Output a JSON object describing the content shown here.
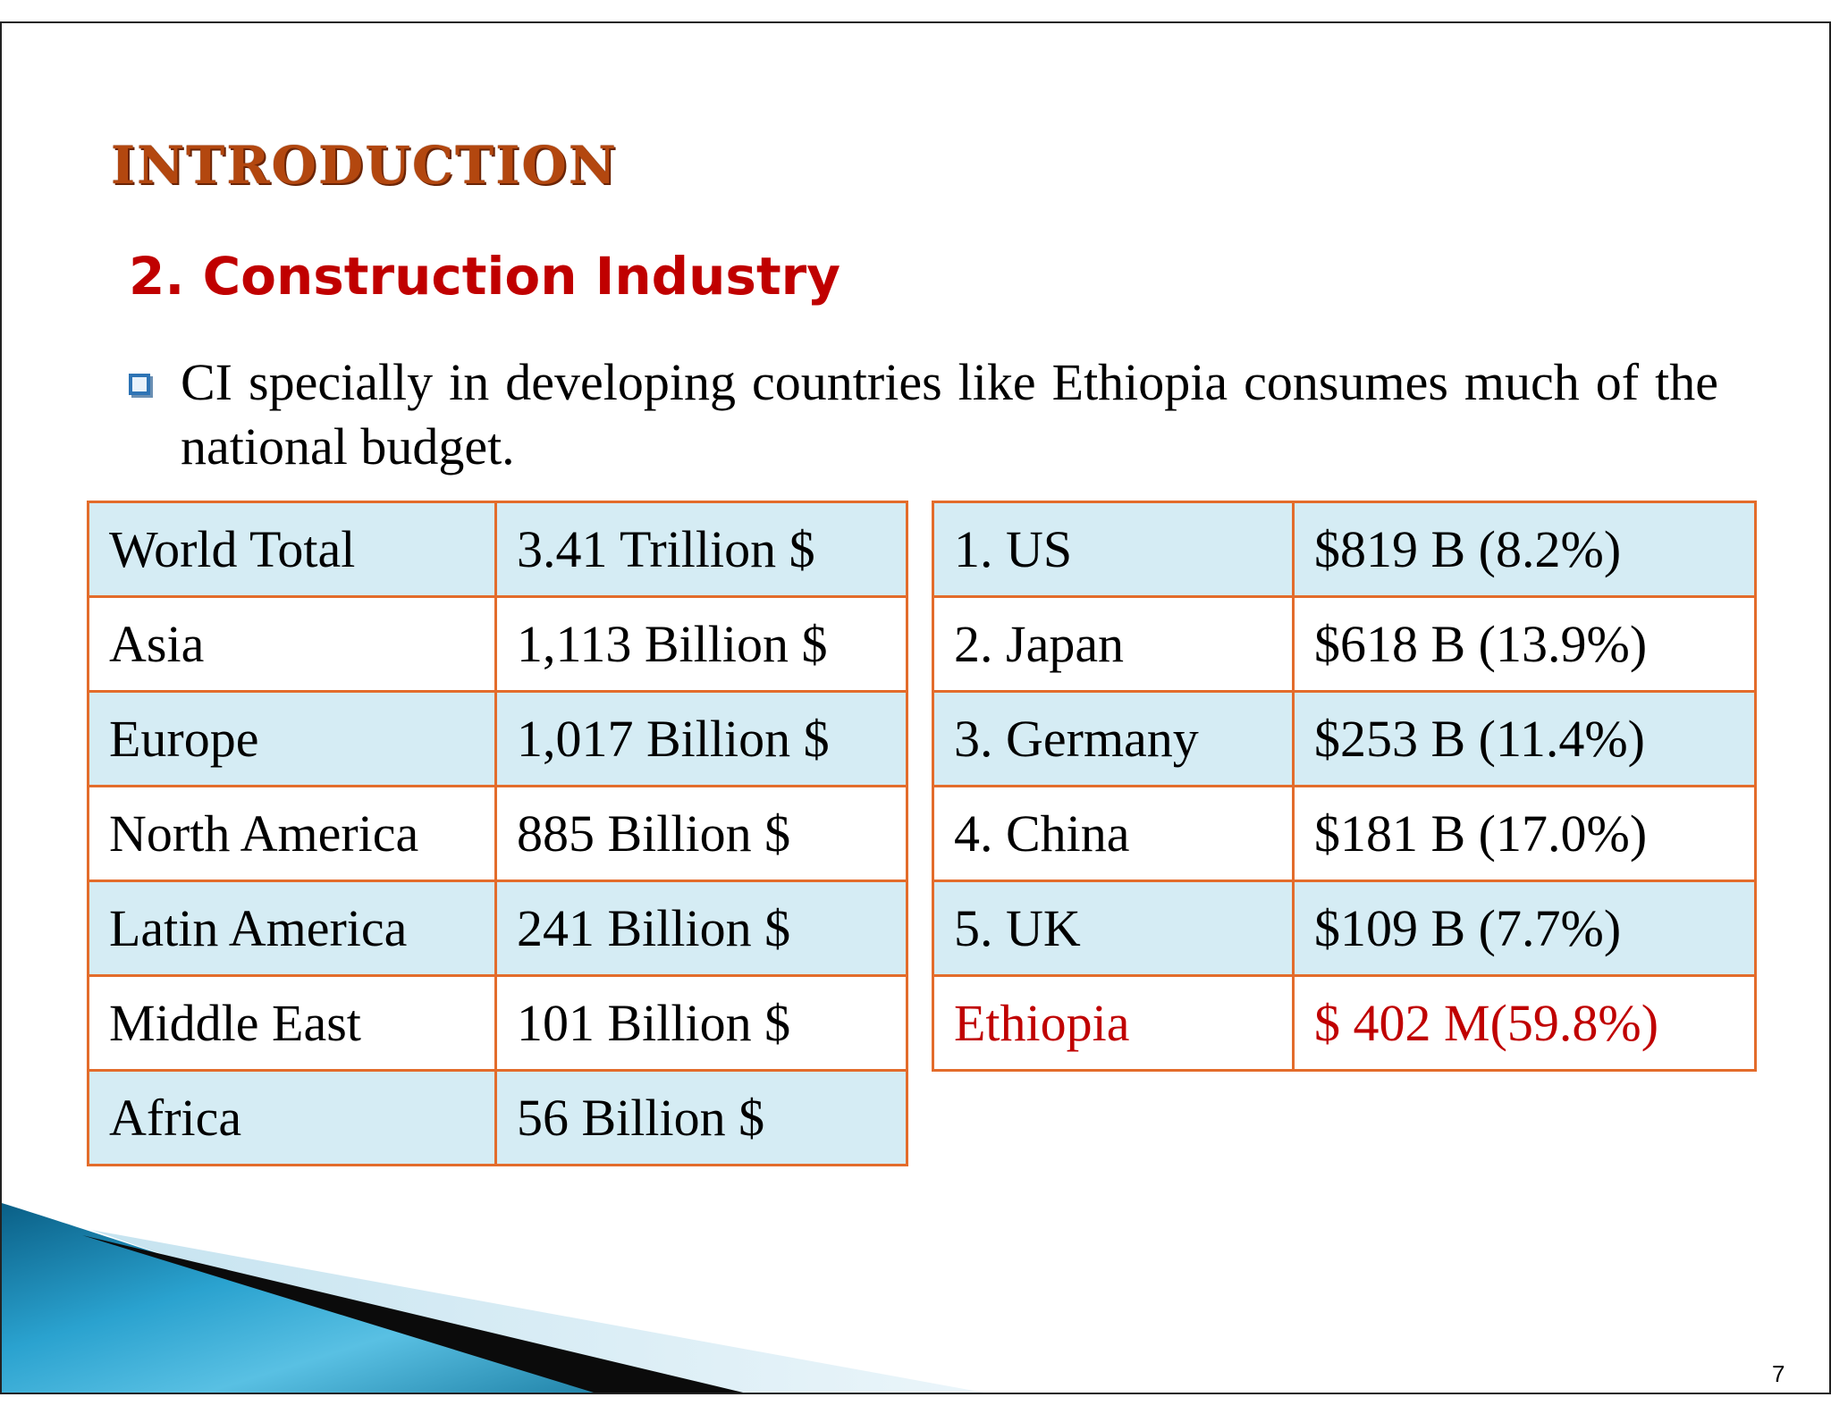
{
  "slide": {
    "heading": "INTRODUCTION",
    "subheading": "2. Construction Industry",
    "bullet_text": "CI specially in developing countries like Ethiopia consumes much of the national budget.",
    "page_number": "7"
  },
  "region_table": {
    "rows": [
      {
        "region": "World Total",
        "value": "3.41 Trillion $"
      },
      {
        "region": "Asia",
        "value": "1,113 Billion $"
      },
      {
        "region": "Europe",
        "value": "1,017 Billion $"
      },
      {
        "region": "North America",
        "value": "885 Billion $"
      },
      {
        "region": "Latin America",
        "value": "241 Billion $"
      },
      {
        "region": "Middle East",
        "value": "101 Billion $"
      },
      {
        "region": "Africa",
        "value": "56 Billion $"
      }
    ]
  },
  "country_table": {
    "rows": [
      {
        "country": "1. US",
        "value": "$819 B (8.2%)"
      },
      {
        "country": "2. Japan",
        "value": "$618 B (13.9%)"
      },
      {
        "country": "3. Germany",
        "value": "$253 B (11.4%)"
      },
      {
        "country": "4. China",
        "value": "$181 B (17.0%)"
      },
      {
        "country": "5. UK",
        "value": "$109 B (7.7%)"
      },
      {
        "country": "Ethiopia",
        "value": "$ 402 M(59.8%)"
      }
    ]
  },
  "colors": {
    "heading": "#b3470f",
    "subheading": "#c00000",
    "table_border": "#e36c2b",
    "table_shade": "#d5ecf4",
    "highlight": "#c00000"
  }
}
